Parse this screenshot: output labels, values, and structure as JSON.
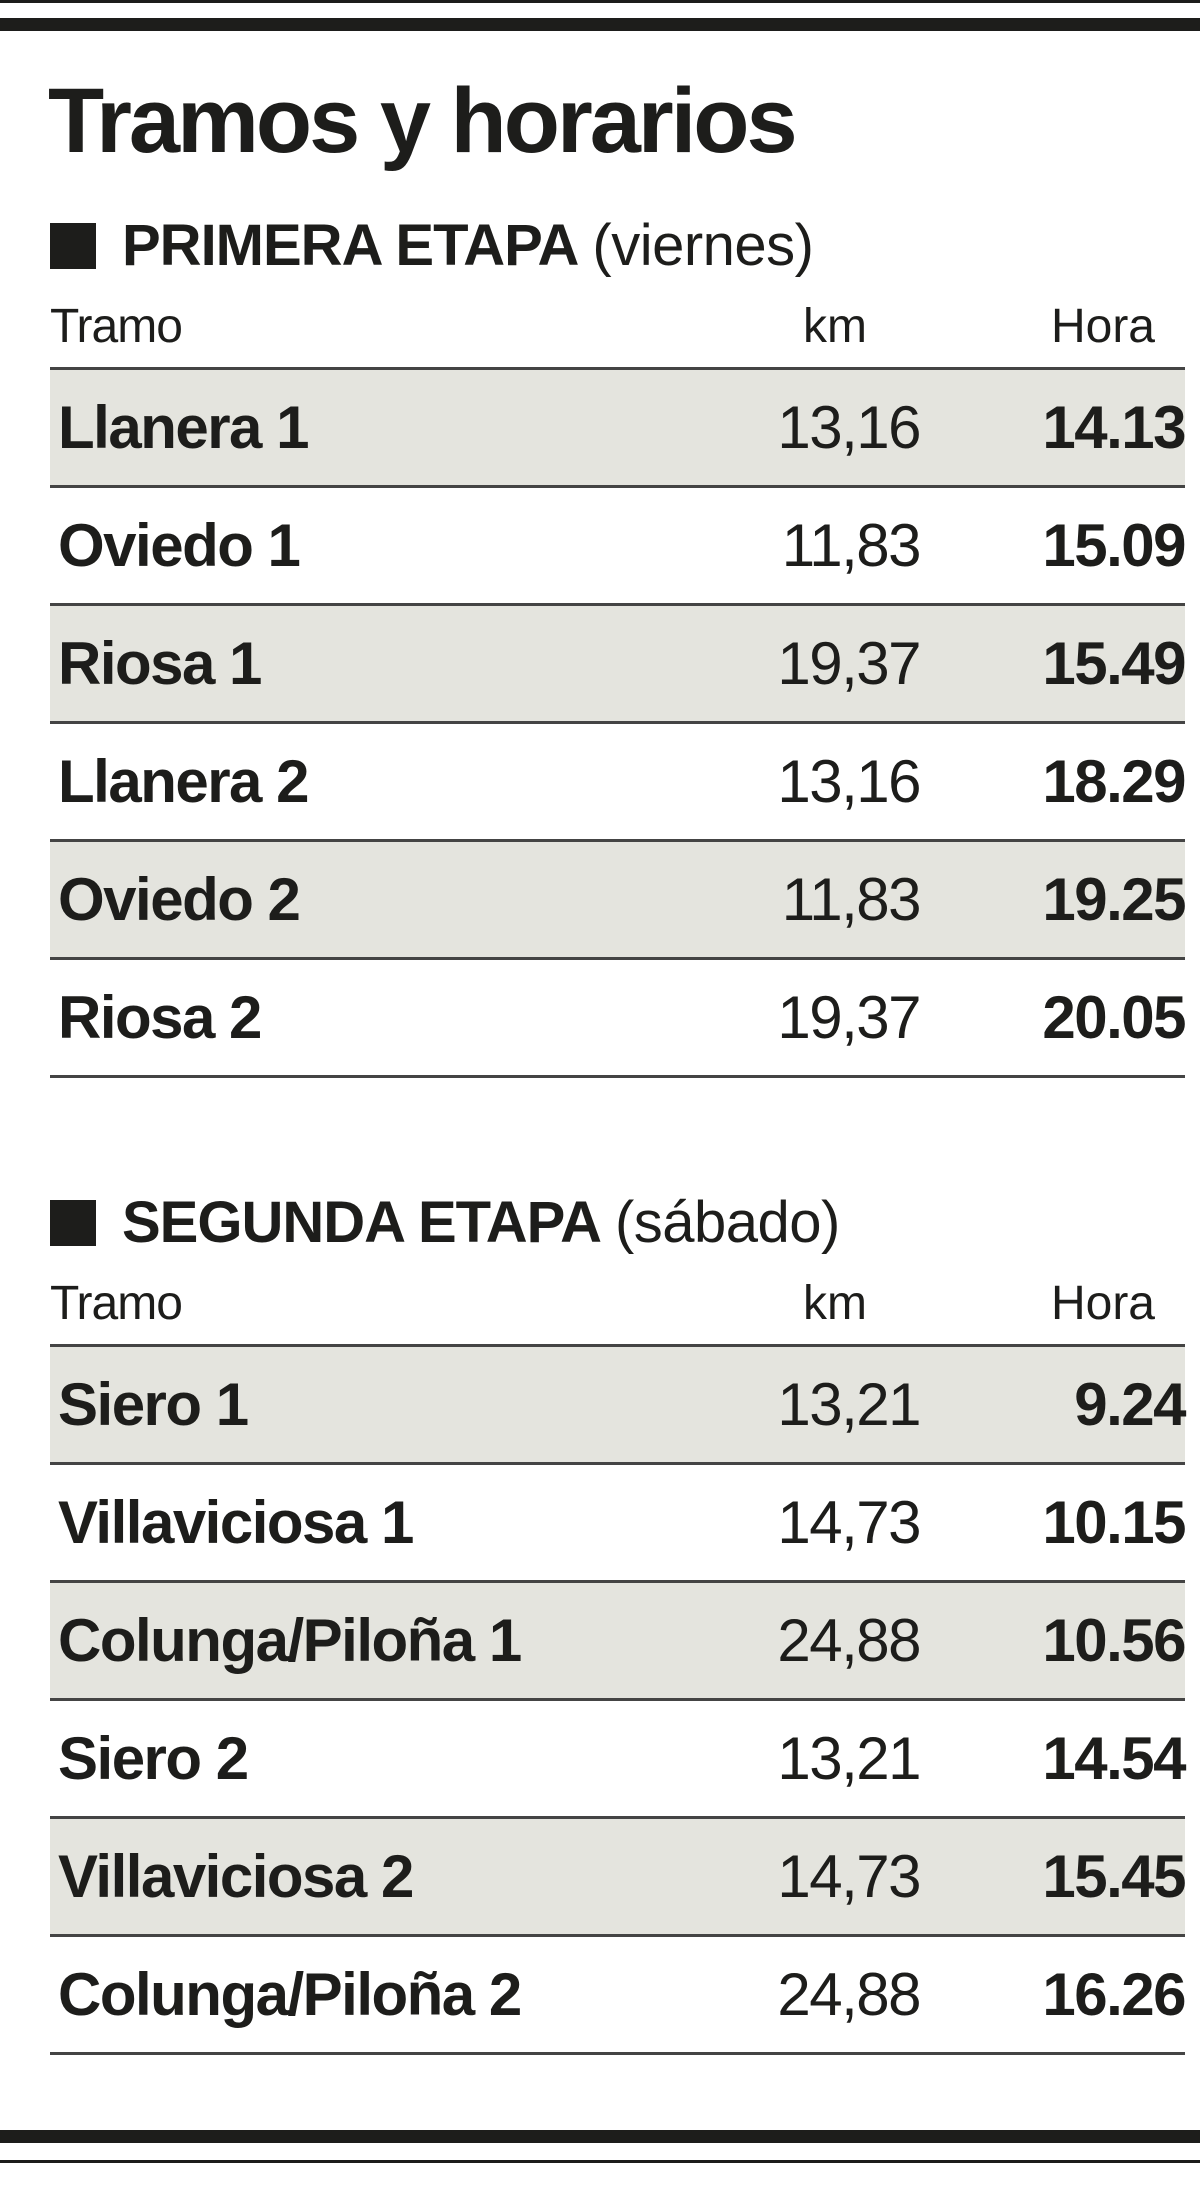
{
  "title": "Tramos y horarios",
  "columns": {
    "tramo": "Tramo",
    "km": "km",
    "hora": "Hora"
  },
  "stages": [
    {
      "name": "PRIMERA ETAPA",
      "day": "(viernes)",
      "rows": [
        {
          "tramo": "Llanera 1",
          "km": "13,16",
          "hora": "14.13"
        },
        {
          "tramo": "Oviedo 1",
          "km": "11,83",
          "hora": "15.09"
        },
        {
          "tramo": "Riosa 1",
          "km": "19,37",
          "hora": "15.49"
        },
        {
          "tramo": "Llanera 2",
          "km": "13,16",
          "hora": "18.29"
        },
        {
          "tramo": "Oviedo 2",
          "km": "11,83",
          "hora": "19.25"
        },
        {
          "tramo": "Riosa 2",
          "km": "19,37",
          "hora": "20.05"
        }
      ]
    },
    {
      "name": "SEGUNDA ETAPA",
      "day": "(sábado)",
      "rows": [
        {
          "tramo": "Siero 1",
          "km": "13,21",
          "hora": "9.24"
        },
        {
          "tramo": "Villaviciosa 1",
          "km": "14,73",
          "hora": "10.15"
        },
        {
          "tramo": "Colunga/Piloña 1",
          "km": "24,88",
          "hora": "10.56"
        },
        {
          "tramo": "Siero 2",
          "km": "13,21",
          "hora": "14.54"
        },
        {
          "tramo": "Villaviciosa 2",
          "km": "14,73",
          "hora": "15.45"
        },
        {
          "tramo": "Colunga/Piloña 2",
          "km": "24,88",
          "hora": "16.26"
        }
      ]
    }
  ],
  "colors": {
    "ink": "#1d1d1b",
    "row_shade": "#e4e4de"
  }
}
